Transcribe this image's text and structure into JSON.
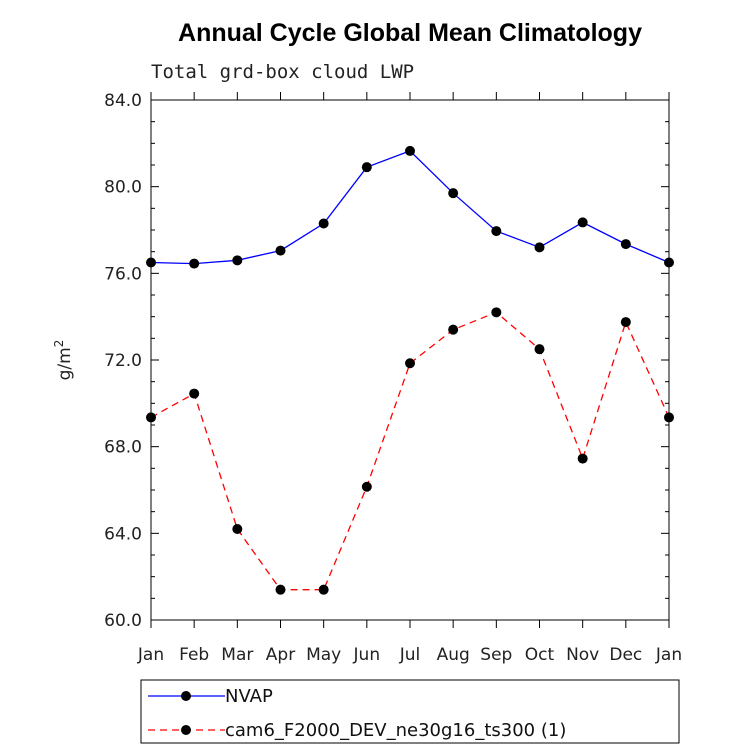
{
  "chart_data": {
    "type": "line",
    "title": "Annual Cycle Global Mean Climatology",
    "subtitle": "Total grd-box cloud LWP",
    "xlabel": "",
    "ylabel": "g/m",
    "ylabel_superscript": "2",
    "categories": [
      "Jan",
      "Feb",
      "Mar",
      "Apr",
      "May",
      "Jun",
      "Jul",
      "Aug",
      "Sep",
      "Oct",
      "Nov",
      "Dec",
      "Jan"
    ],
    "ylim": [
      60.0,
      84.0
    ],
    "yticks": [
      "60.0",
      "64.0",
      "68.0",
      "72.0",
      "76.0",
      "80.0",
      "84.0"
    ],
    "legend_position": "bottom",
    "series": [
      {
        "name": "NVAP",
        "color": "#0000ff",
        "style": "solid",
        "marker": "filled-circle",
        "values": [
          76.5,
          76.45,
          76.6,
          77.05,
          78.3,
          80.9,
          81.65,
          79.7,
          77.95,
          77.2,
          78.35,
          77.35,
          76.5
        ]
      },
      {
        "name": "cam6_F2000_DEV_ne30g16_ts300 (1)",
        "color": "#ff0000",
        "style": "dashed",
        "marker": "filled-circle",
        "values": [
          69.35,
          70.45,
          64.2,
          61.4,
          61.4,
          66.15,
          71.85,
          73.4,
          74.2,
          72.5,
          67.45,
          73.75,
          69.35
        ]
      }
    ]
  }
}
